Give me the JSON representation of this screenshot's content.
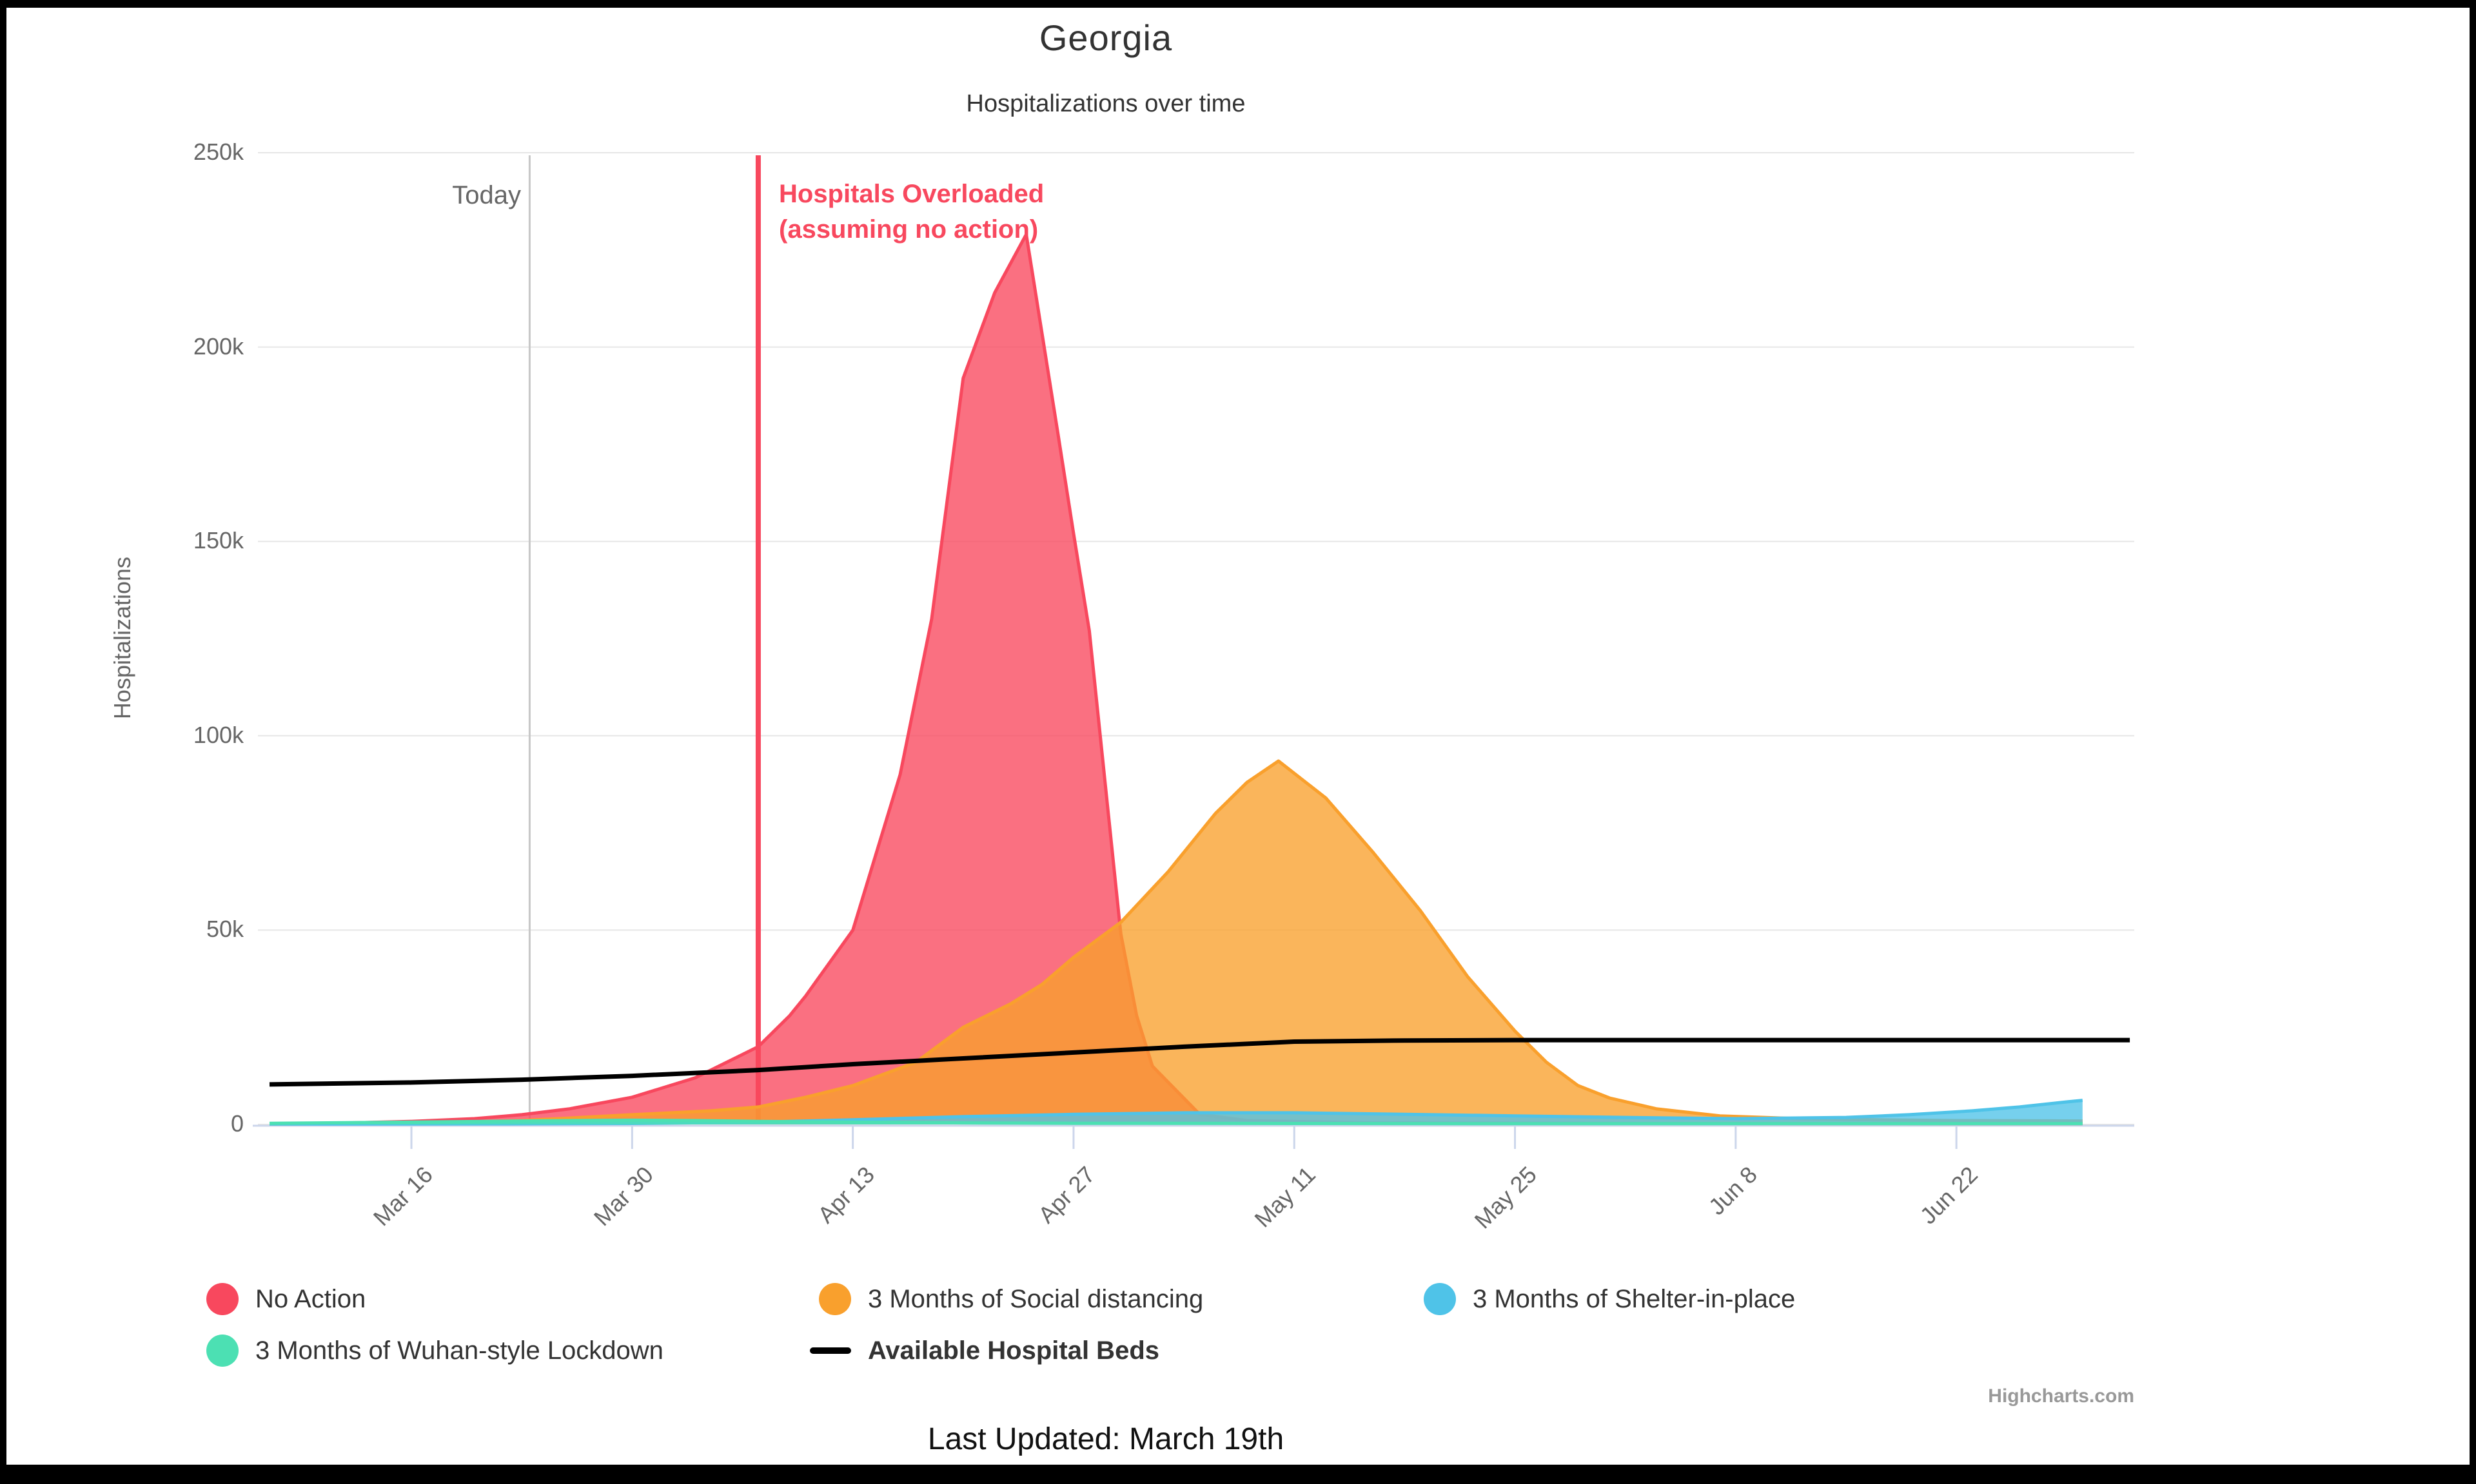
{
  "chart": {
    "title": "Georgia",
    "subtitle": "Hospitalizations over time",
    "y_axis_title": "Hospitalizations"
  },
  "annotations": {
    "today_label": "Today",
    "overload_line1": "Hospitals Overloaded",
    "overload_line2": "(assuming no action)"
  },
  "legend": {
    "items": [
      {
        "label": "No Action",
        "color": "#f8485e",
        "marker": "circle"
      },
      {
        "label": "3 Months of Social distancing",
        "color": "#f9a02d",
        "marker": "circle"
      },
      {
        "label": "3 Months of Shelter-in-place",
        "color": "#4fc3e8",
        "marker": "circle"
      },
      {
        "label": "3 Months of Wuhan-style Lockdown",
        "color": "#4ce0b3",
        "marker": "circle"
      },
      {
        "label": "Available Hospital Beds",
        "color": "#000000",
        "marker": "line",
        "bold": true
      }
    ]
  },
  "footer": {
    "last_updated": "Last Updated: March 19th",
    "credits": "Highcharts.com"
  },
  "chart_data": {
    "type": "area",
    "title": "Georgia",
    "subtitle": "Hospitalizations over time",
    "ylabel": "Hospitalizations",
    "xlabel": "",
    "ylim": [
      0,
      250000
    ],
    "xlim_days": [
      0,
      118.3
    ],
    "x_unit": "days since Mar 7 2020",
    "grid": "horizontal-only",
    "legend_position": "bottom",
    "y_ticks": [
      {
        "value": 0,
        "label": "0"
      },
      {
        "value": 50000,
        "label": "50k"
      },
      {
        "value": 100000,
        "label": "100k"
      },
      {
        "value": 150000,
        "label": "150k"
      },
      {
        "value": 200000,
        "label": "200k"
      },
      {
        "value": 250000,
        "label": "250k"
      }
    ],
    "x_ticks": [
      {
        "day": 9,
        "label": "Mar 16"
      },
      {
        "day": 23,
        "label": "Mar 30"
      },
      {
        "day": 37,
        "label": "Apr 13"
      },
      {
        "day": 51,
        "label": "Apr 27"
      },
      {
        "day": 65,
        "label": "May 11"
      },
      {
        "day": 79,
        "label": "May 25"
      },
      {
        "day": 93,
        "label": "Jun 8"
      },
      {
        "day": 107,
        "label": "Jun 22"
      }
    ],
    "plot_lines": [
      {
        "day": 16.5,
        "color": "#c8c8c8",
        "width": 3,
        "label": "Today"
      },
      {
        "day": 31,
        "color": "#f8485e",
        "width": 8,
        "label": "Hospitals Overloaded (assuming no action)"
      }
    ],
    "style": {
      "grid_color": "#e6e6e6",
      "axis_line_color": "#ccd6eb",
      "label_color": "#666666"
    },
    "series": [
      {
        "name": "No Action",
        "color": "#f8485e",
        "kind": "area",
        "points": [
          [
            0,
            200
          ],
          [
            5,
            400
          ],
          [
            9,
            800
          ],
          [
            13,
            1500
          ],
          [
            16,
            2500
          ],
          [
            19,
            4000
          ],
          [
            23,
            7000
          ],
          [
            27,
            12000
          ],
          [
            31,
            20000
          ],
          [
            33,
            28000
          ],
          [
            34,
            33000
          ],
          [
            37,
            50000
          ],
          [
            40,
            90000
          ],
          [
            42,
            130000
          ],
          [
            44,
            192000
          ],
          [
            46,
            214000
          ],
          [
            48,
            229000
          ],
          [
            50,
            178000
          ],
          [
            51,
            152000
          ],
          [
            52,
            127000
          ],
          [
            54,
            49000
          ],
          [
            55,
            28000
          ],
          [
            56,
            15000
          ],
          [
            59,
            2600
          ],
          [
            62,
            1000
          ],
          [
            70,
            400
          ],
          [
            90,
            250
          ],
          [
            115,
            200
          ]
        ]
      },
      {
        "name": "3 Months of Social distancing",
        "color": "#f9a02d",
        "kind": "area",
        "points": [
          [
            0,
            100
          ],
          [
            9,
            300
          ],
          [
            16,
            1000
          ],
          [
            23,
            2500
          ],
          [
            28,
            3500
          ],
          [
            31,
            4500
          ],
          [
            34,
            7000
          ],
          [
            37,
            10000
          ],
          [
            41,
            16000
          ],
          [
            44,
            25000
          ],
          [
            47,
            31000
          ],
          [
            49,
            36000
          ],
          [
            51,
            43000
          ],
          [
            54,
            52000
          ],
          [
            57,
            65000
          ],
          [
            60,
            80000
          ],
          [
            62,
            88000
          ],
          [
            64,
            93500
          ],
          [
            67,
            84000
          ],
          [
            70,
            70000
          ],
          [
            73,
            55000
          ],
          [
            76,
            38000
          ],
          [
            79,
            24000
          ],
          [
            81,
            16000
          ],
          [
            83,
            10000
          ],
          [
            85,
            6800
          ],
          [
            88,
            4000
          ],
          [
            92,
            2200
          ],
          [
            97,
            1500
          ],
          [
            102,
            1200
          ],
          [
            107,
            1000
          ],
          [
            115,
            900
          ]
        ]
      },
      {
        "name": "3 Months of Shelter-in-place",
        "color": "#4fc3e8",
        "kind": "area",
        "points": [
          [
            0,
            100
          ],
          [
            15,
            150
          ],
          [
            23,
            250
          ],
          [
            31,
            600
          ],
          [
            37,
            1200
          ],
          [
            44,
            2000
          ],
          [
            51,
            2600
          ],
          [
            58,
            3000
          ],
          [
            65,
            3000
          ],
          [
            72,
            2600
          ],
          [
            79,
            2200
          ],
          [
            86,
            1800
          ],
          [
            93,
            1500
          ],
          [
            100,
            1800
          ],
          [
            104,
            2500
          ],
          [
            108,
            3500
          ],
          [
            111,
            4500
          ],
          [
            114,
            5800
          ],
          [
            115,
            6200
          ]
        ]
      },
      {
        "name": "3 Months of Wuhan-style Lockdown",
        "color": "#4ce0b3",
        "kind": "area",
        "points": [
          [
            0,
            300
          ],
          [
            9,
            600
          ],
          [
            16,
            900
          ],
          [
            23,
            1100
          ],
          [
            27,
            1000
          ],
          [
            31,
            800
          ],
          [
            37,
            600
          ],
          [
            44,
            400
          ],
          [
            51,
            300
          ],
          [
            65,
            250
          ],
          [
            79,
            200
          ],
          [
            93,
            200
          ],
          [
            107,
            200
          ],
          [
            115,
            200
          ]
        ]
      },
      {
        "name": "Available Hospital Beds",
        "color": "#000000",
        "kind": "line",
        "points": [
          [
            0,
            10300
          ],
          [
            9,
            10800
          ],
          [
            16,
            11500
          ],
          [
            23,
            12500
          ],
          [
            31,
            14000
          ],
          [
            37,
            15500
          ],
          [
            44,
            17000
          ],
          [
            51,
            18500
          ],
          [
            58,
            20000
          ],
          [
            65,
            21300
          ],
          [
            72,
            21600
          ],
          [
            79,
            21700
          ],
          [
            118,
            21700
          ]
        ]
      }
    ]
  }
}
